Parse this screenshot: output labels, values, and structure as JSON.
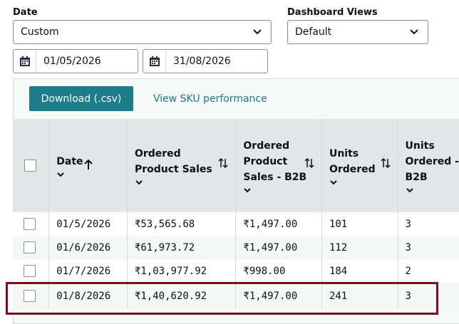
{
  "filters": {
    "date_label": "Date",
    "date_value": "Custom",
    "dashboard_label": "Dashboard Views",
    "dashboard_value": "Default",
    "start_date": "01/05/2026",
    "end_date": "31/08/2026"
  },
  "toolbar": {
    "download_label": "Download (.csv)",
    "sku_link": "View SKU performance"
  },
  "table": {
    "headers": {
      "date": "Date",
      "ordered_sales_1": "Ordered",
      "ordered_sales_2": "Product Sales",
      "b2b_1": "Ordered",
      "b2b_2": "Product",
      "b2b_3": "Sales - B2B",
      "units_1": "Units",
      "units_2": "Ordered",
      "units_b2b_1": "Units",
      "units_b2b_2": "Ordered -",
      "units_b2b_3": "B2B"
    },
    "rows": [
      {
        "date": "01/5/2026",
        "sales": "₹53,565.68",
        "b2b": "₹1,497.00",
        "units": "101",
        "units_b2b": "3"
      },
      {
        "date": "01/6/2026",
        "sales": "₹61,973.72",
        "b2b": "₹1,497.00",
        "units": "112",
        "units_b2b": "3"
      },
      {
        "date": "01/7/2026",
        "sales": "₹1,03,977.92",
        "b2b": "₹998.00",
        "units": "184",
        "units_b2b": "2"
      },
      {
        "date": "01/8/2026",
        "sales": "₹1,40,620.92",
        "b2b": "₹1,497.00",
        "units": "241",
        "units_b2b": "3"
      }
    ]
  },
  "colors": {
    "accent": "#1d7d8a",
    "link": "#147c8f",
    "highlight_border": "#7a0f1a"
  }
}
